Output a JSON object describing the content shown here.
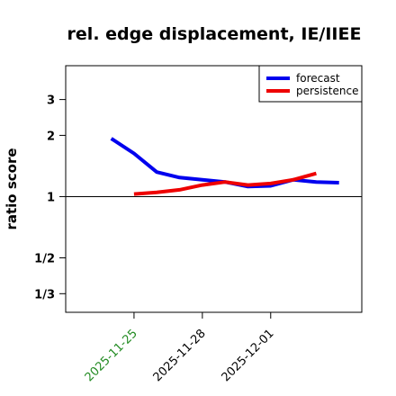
{
  "chart_data": {
    "type": "line",
    "title": "rel. edge displacement, IE/IIEE",
    "xlabel": "",
    "ylabel": "ratio score",
    "y_scale": "log",
    "ylim": [
      0.27,
      4.4
    ],
    "y_ticks": [
      {
        "value": 0.3333,
        "label": "1/3"
      },
      {
        "value": 0.5,
        "label": "1/2"
      },
      {
        "value": 1,
        "label": "1"
      },
      {
        "value": 2,
        "label": "2"
      },
      {
        "value": 3,
        "label": "3"
      }
    ],
    "reference_line": 1,
    "xlim": [
      "2025-11-22",
      "2025-12-05"
    ],
    "x_ticks": [
      {
        "date": "2025-11-25",
        "label": "2025-11-25",
        "color": "#228b22"
      },
      {
        "date": "2025-11-28",
        "label": "2025-11-28",
        "color": "#000000"
      },
      {
        "date": "2025-12-01",
        "label": "2025-12-01",
        "color": "#000000"
      }
    ],
    "x": [
      "2025-11-23",
      "2025-11-24",
      "2025-11-25",
      "2025-11-26",
      "2025-11-27",
      "2025-11-28",
      "2025-11-29",
      "2025-11-30",
      "2025-12-01",
      "2025-12-02",
      "2025-12-03",
      "2025-12-04"
    ],
    "series": [
      {
        "name": "forecast",
        "color": "#0000ee",
        "values": [
          null,
          1.93,
          1.63,
          1.32,
          1.24,
          1.21,
          1.18,
          1.12,
          1.13,
          1.21,
          1.18,
          1.17
        ]
      },
      {
        "name": "persistence",
        "color": "#ee0000",
        "values": [
          null,
          null,
          1.03,
          1.05,
          1.08,
          1.14,
          1.18,
          1.14,
          1.16,
          1.21,
          1.3,
          null
        ]
      }
    ],
    "legend_position": "top-right",
    "grid": false
  }
}
